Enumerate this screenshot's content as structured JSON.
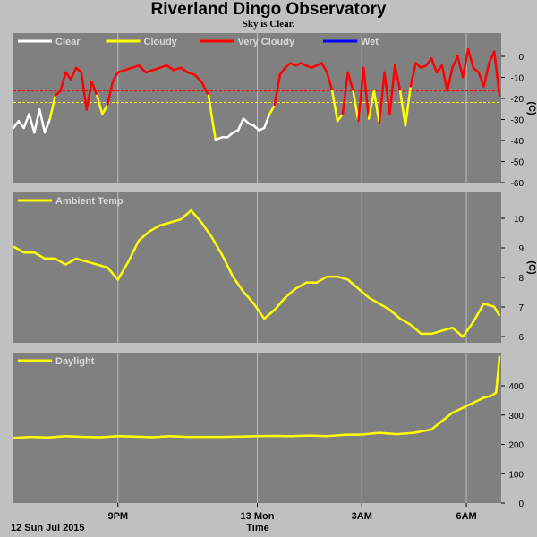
{
  "title": "Riverland Dingo Observatory",
  "subtitle": "Sky is Clear.",
  "x_axis": {
    "label": "Time",
    "date_label": "12 Sun Jul 2015",
    "ticks": [
      "9PM",
      "13 Mon",
      "3AM",
      "6AM"
    ]
  },
  "colors": {
    "background": "#c0c0c0",
    "panel": "#808080",
    "clear": "#ffffff",
    "cloudy": "#ffff00",
    "very_cloudy": "#ff0000",
    "wet": "#0000ff",
    "trace": "#ffff00",
    "legend_text": "#d8d8d8"
  },
  "chart_data": [
    {
      "type": "line",
      "panel": "sky",
      "ylabel": "(C)",
      "ylim": [
        -60,
        5
      ],
      "yticks": [
        "0",
        "-10",
        "-20",
        "-30",
        "-40",
        "-50",
        "-60"
      ],
      "legend": [
        {
          "label": "Clear",
          "color": "#ffffff"
        },
        {
          "label": "Cloudy",
          "color": "#ffff00"
        },
        {
          "label": "Very Cloudy",
          "color": "#ff0000"
        },
        {
          "label": "Wet",
          "color": "#0000ff"
        }
      ],
      "thresholds": [
        {
          "value": -20,
          "color": "#ff0000"
        },
        {
          "value": -25,
          "color": "#ffff00"
        }
      ],
      "series": [
        {
          "x": [
            18.0,
            18.15,
            18.3,
            18.45,
            18.6,
            18.75,
            18.9,
            19.05,
            19.2,
            19.35,
            19.5,
            19.65,
            19.8,
            19.95,
            20.1,
            20.25,
            20.4,
            20.55,
            20.7,
            20.85,
            21.0,
            21.2,
            21.4,
            21.6,
            21.8,
            22.0,
            22.2,
            22.4,
            22.6,
            22.8,
            23.0,
            23.2,
            23.4,
            23.6,
            23.8,
            24.0,
            24.15,
            24.3,
            24.45,
            24.6,
            24.75,
            24.9,
            25.05,
            25.2,
            25.35,
            25.5,
            25.65,
            25.8,
            25.95,
            26.1,
            26.25,
            26.4,
            26.55,
            26.7,
            26.85,
            27.0,
            27.15,
            27.3,
            27.45,
            27.6,
            27.75,
            27.9,
            28.05,
            28.2,
            28.35,
            28.5,
            28.65,
            28.8,
            28.95,
            29.1,
            29.25,
            29.4,
            29.55,
            29.7,
            29.85,
            30.0,
            30.15,
            30.3,
            30.45,
            30.6,
            30.75,
            30.9,
            31.05,
            31.2,
            31.35,
            31.5,
            31.65,
            31.8,
            31.95
          ],
          "y": [
            -36,
            -33,
            -36,
            -30,
            -38,
            -28,
            -38,
            -32,
            -22,
            -20,
            -12,
            -15,
            -10,
            -12,
            -28,
            -16,
            -22,
            -30,
            -26,
            -16,
            -12,
            -11,
            -10,
            -9,
            -12,
            -11,
            -10,
            -9,
            -11,
            -10,
            -12,
            -13,
            -16,
            -22,
            -41,
            -40,
            -40,
            -38,
            -37,
            -32,
            -34,
            -35,
            -37,
            -36,
            -30,
            -26,
            -13,
            -10,
            -8,
            -9,
            -8,
            -9,
            -10,
            -9,
            -8,
            -12,
            -20,
            -33,
            -30,
            -12,
            -20,
            -33,
            -10,
            -32,
            -20,
            -34,
            -12,
            -30,
            -9,
            -20,
            -35,
            -18,
            -8,
            -10,
            -9,
            -6,
            -12,
            -9,
            -20,
            -10,
            -5,
            -14,
            -2,
            -10,
            -12,
            -18,
            -8,
            -3,
            -22
          ]
        }
      ]
    },
    {
      "type": "line",
      "panel": "ambient",
      "ylabel": "(C)",
      "ylim": [
        5.8,
        10.8
      ],
      "yticks": [
        "10",
        "9",
        "8",
        "7",
        "6"
      ],
      "legend": [
        {
          "label": "Ambient Temp",
          "color": "#ffff00"
        }
      ],
      "series": [
        {
          "name": "Ambient Temp",
          "x": [
            18.0,
            18.3,
            18.6,
            18.9,
            19.2,
            19.5,
            19.8,
            20.1,
            20.4,
            20.7,
            21.0,
            21.3,
            21.6,
            21.9,
            22.2,
            22.5,
            22.8,
            23.1,
            23.4,
            23.7,
            24.0,
            24.3,
            24.6,
            24.9,
            25.2,
            25.5,
            25.8,
            26.1,
            26.4,
            26.7,
            27.0,
            27.3,
            27.6,
            27.9,
            28.2,
            28.5,
            28.8,
            29.1,
            29.4,
            29.7,
            30.0,
            30.3,
            30.6,
            30.9,
            31.2,
            31.5,
            31.8,
            31.95
          ],
          "y": [
            9.0,
            8.8,
            8.8,
            8.6,
            8.6,
            8.4,
            8.6,
            8.5,
            8.4,
            8.3,
            7.9,
            8.5,
            9.2,
            9.5,
            9.7,
            9.8,
            9.9,
            10.2,
            9.8,
            9.3,
            8.7,
            8.0,
            7.5,
            7.1,
            6.6,
            6.9,
            7.3,
            7.6,
            7.8,
            7.8,
            8.0,
            8.0,
            7.9,
            7.6,
            7.3,
            7.1,
            6.9,
            6.6,
            6.4,
            6.1,
            6.1,
            6.2,
            6.3,
            6.0,
            6.5,
            7.1,
            7.0,
            6.7
          ]
        }
      ]
    },
    {
      "type": "line",
      "panel": "daylight",
      "ylabel": "",
      "ylim": [
        0,
        450
      ],
      "yticks": [
        "400",
        "300",
        "200",
        "100",
        "0"
      ],
      "legend": [
        {
          "label": "Daylight",
          "color": "#ffff00"
        }
      ],
      "series": [
        {
          "name": "Daylight",
          "x": [
            18.0,
            18.5,
            19.0,
            19.5,
            20.0,
            20.5,
            21.0,
            21.5,
            22.0,
            22.5,
            23.0,
            23.5,
            24.0,
            24.5,
            25.0,
            25.5,
            26.0,
            26.5,
            27.0,
            27.5,
            28.0,
            28.5,
            29.0,
            29.5,
            30.0,
            30.3,
            30.6,
            30.9,
            31.2,
            31.5,
            31.7,
            31.85,
            31.9,
            31.95
          ],
          "y": [
            195,
            198,
            196,
            200,
            198,
            197,
            200,
            199,
            197,
            200,
            198,
            198,
            198,
            199,
            200,
            201,
            200,
            202,
            200,
            204,
            205,
            210,
            206,
            210,
            220,
            245,
            270,
            285,
            300,
            315,
            320,
            330,
            380,
            440
          ]
        }
      ]
    }
  ]
}
